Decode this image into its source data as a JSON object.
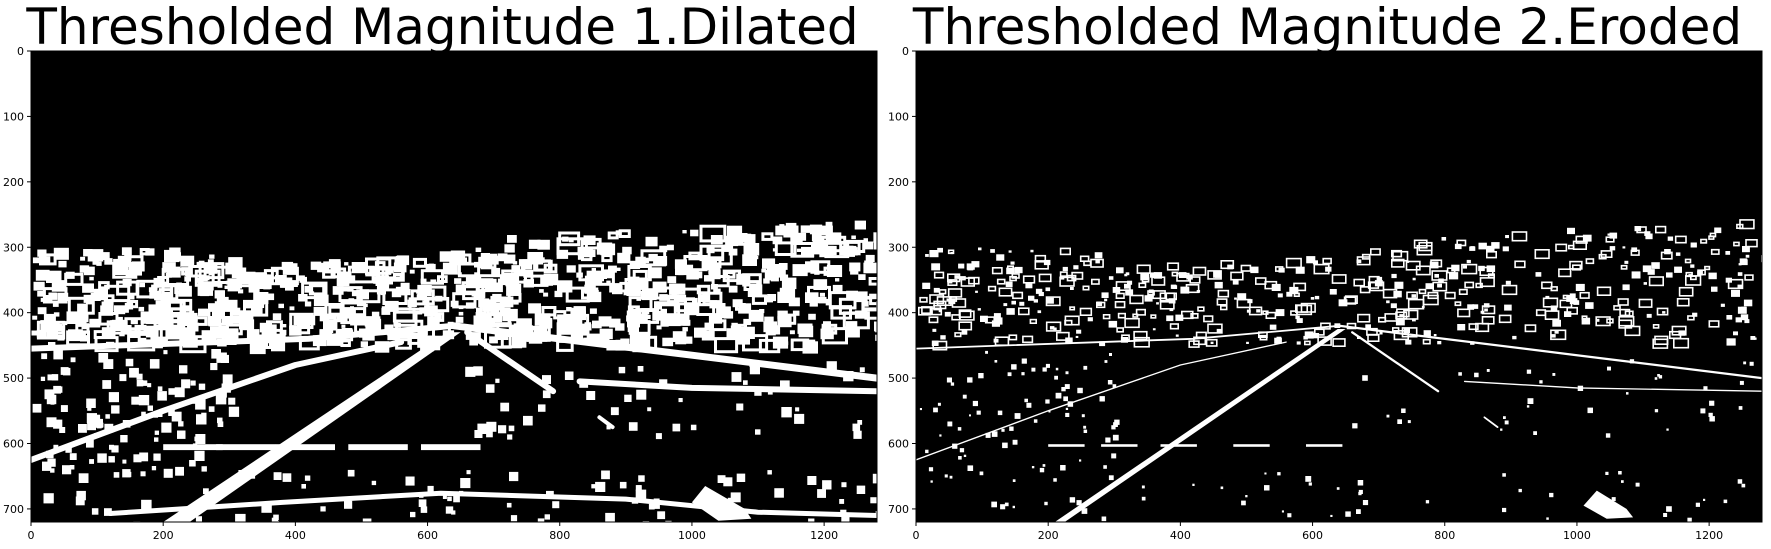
{
  "figure": {
    "panels": [
      {
        "title": "Thresholded Magnitude 1.Dilated",
        "image": "binary-road-edge-mask",
        "x_ticks": [
          "0",
          "200",
          "400",
          "600",
          "800",
          "1000",
          "1200"
        ],
        "y_ticks": [
          "0",
          "100",
          "200",
          "300",
          "400",
          "500",
          "600",
          "700"
        ]
      },
      {
        "title": "Thresholded Magnitude 2.Eroded",
        "image": "binary-road-edge-mask",
        "x_ticks": [
          "0",
          "200",
          "400",
          "600",
          "800",
          "1000",
          "1200"
        ],
        "y_ticks": [
          "0",
          "100",
          "200",
          "300",
          "400",
          "500",
          "600",
          "700"
        ]
      }
    ],
    "x_range": [
      0,
      1280
    ],
    "y_range": [
      720,
      0
    ],
    "background_color": "#000000",
    "foreground_color": "#ffffff"
  }
}
